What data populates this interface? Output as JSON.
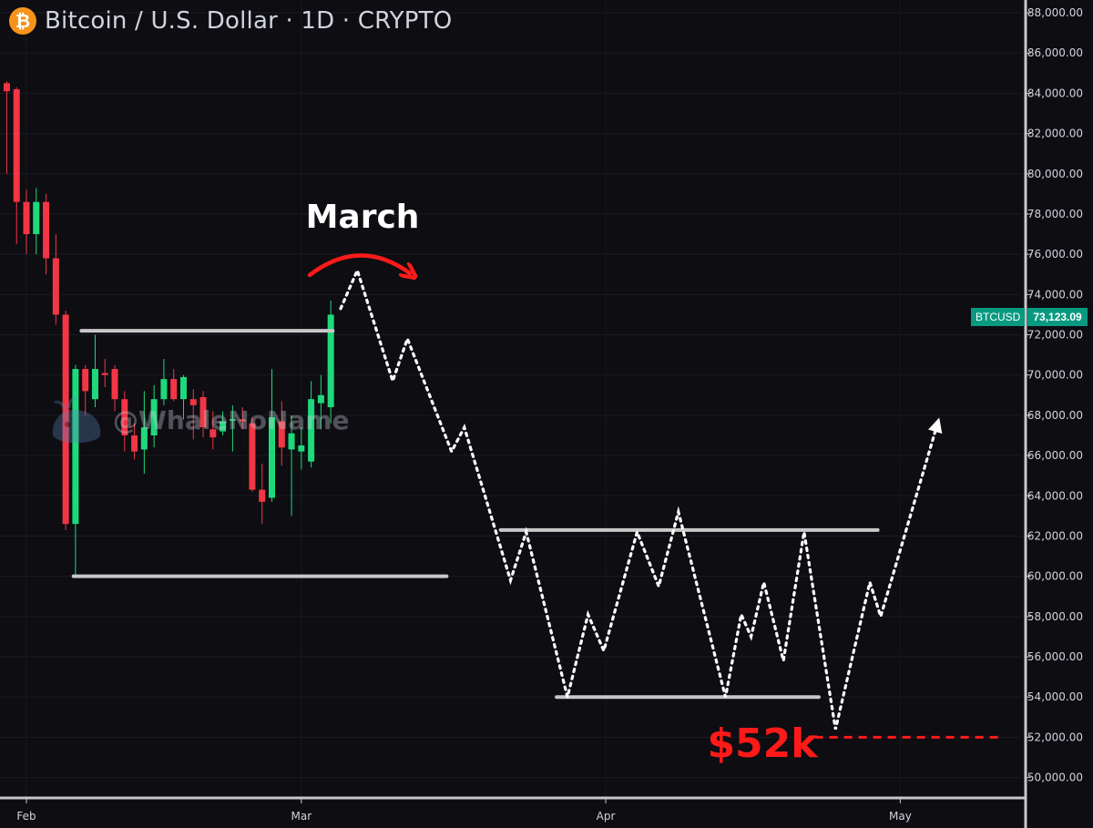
{
  "header": {
    "icon": "bitcoin-icon",
    "title": "Bitcoin / U.S. Dollar · 1D · CRYPTO"
  },
  "watermark": {
    "icon": "whale-icon",
    "text": "@WhaleNoName"
  },
  "price_tag": {
    "symbol": "BTCUSD",
    "value": "73,123.09",
    "color": "#089981"
  },
  "annotations": {
    "march_label": "March",
    "target_label": "$52k",
    "arrow_color": "#ff1a1a"
  },
  "chart_data": {
    "type": "candlestick",
    "title": "Bitcoin / U.S. Dollar · 1D · CRYPTO",
    "ylim": [
      49000,
      89000
    ],
    "y_ticks": [
      50000,
      52000,
      54000,
      56000,
      58000,
      60000,
      62000,
      64000,
      66000,
      68000,
      70000,
      72000,
      74000,
      76000,
      78000,
      80000,
      82000,
      84000,
      86000,
      88000
    ],
    "y_tick_labels": [
      "50,000.00",
      "52,000.00",
      "54,000.00",
      "56,000.00",
      "58,000.00",
      "60,000.00",
      "62,000.00",
      "64,000.00",
      "66,000.00",
      "68,000.00",
      "70,000.00",
      "72,000.00",
      "74,000.00",
      "76,000.00",
      "78,000.00",
      "80,000.00",
      "82,000.00",
      "84,000.00",
      "86,000.00",
      "88,000.00"
    ],
    "x_ticks": [
      {
        "label": "Feb",
        "day": 0
      },
      {
        "label": "Mar",
        "day": 28
      },
      {
        "label": "Apr",
        "day": 59
      },
      {
        "label": "May",
        "day": 89
      }
    ],
    "up_color": "#089981",
    "up_color_bright": "#1ed97b",
    "down_color": "#f23645",
    "candles": [
      {
        "day": -2,
        "o": 84500,
        "h": 84600,
        "l": 80000,
        "c": 84100
      },
      {
        "day": -1,
        "o": 84200,
        "h": 84300,
        "l": 76500,
        "c": 78600
      },
      {
        "day": 0,
        "o": 78600,
        "h": 79200,
        "l": 76000,
        "c": 77000
      },
      {
        "day": 1,
        "o": 77000,
        "h": 79300,
        "l": 76000,
        "c": 78600
      },
      {
        "day": 2,
        "o": 78600,
        "h": 79000,
        "l": 75000,
        "c": 75800
      },
      {
        "day": 3,
        "o": 75800,
        "h": 77000,
        "l": 72500,
        "c": 73000
      },
      {
        "day": 4,
        "o": 73000,
        "h": 73200,
        "l": 62300,
        "c": 62600
      },
      {
        "day": 5,
        "o": 62600,
        "h": 70500,
        "l": 60000,
        "c": 70300
      },
      {
        "day": 6,
        "o": 70300,
        "h": 70500,
        "l": 68000,
        "c": 69200
      },
      {
        "day": 7,
        "o": 68800,
        "h": 72000,
        "l": 68400,
        "c": 70300
      },
      {
        "day": 8,
        "o": 70100,
        "h": 70800,
        "l": 69400,
        "c": 70000
      },
      {
        "day": 9,
        "o": 70300,
        "h": 70500,
        "l": 68200,
        "c": 68800
      },
      {
        "day": 10,
        "o": 68800,
        "h": 69200,
        "l": 66200,
        "c": 67000
      },
      {
        "day": 11,
        "o": 67000,
        "h": 67600,
        "l": 65800,
        "c": 66200
      },
      {
        "day": 12,
        "o": 66300,
        "h": 69200,
        "l": 65100,
        "c": 67400
      },
      {
        "day": 13,
        "o": 67000,
        "h": 69500,
        "l": 66400,
        "c": 68800
      },
      {
        "day": 14,
        "o": 68800,
        "h": 70800,
        "l": 68500,
        "c": 69800
      },
      {
        "day": 15,
        "o": 69800,
        "h": 70300,
        "l": 68700,
        "c": 68800
      },
      {
        "day": 16,
        "o": 68800,
        "h": 70000,
        "l": 67800,
        "c": 69900
      },
      {
        "day": 17,
        "o": 68800,
        "h": 69300,
        "l": 66800,
        "c": 68500
      },
      {
        "day": 18,
        "o": 68900,
        "h": 69200,
        "l": 66900,
        "c": 67400
      },
      {
        "day": 19,
        "o": 67300,
        "h": 68200,
        "l": 66300,
        "c": 66900
      },
      {
        "day": 20,
        "o": 67200,
        "h": 68200,
        "l": 67000,
        "c": 67700
      },
      {
        "day": 21,
        "o": 67800,
        "h": 68500,
        "l": 66200,
        "c": 67800
      },
      {
        "day": 22,
        "o": 67800,
        "h": 68400,
        "l": 67300,
        "c": 67700
      },
      {
        "day": 23,
        "o": 67600,
        "h": 67900,
        "l": 64200,
        "c": 64300
      },
      {
        "day": 24,
        "o": 64300,
        "h": 65600,
        "l": 62600,
        "c": 63700
      },
      {
        "day": 25,
        "o": 63900,
        "h": 70300,
        "l": 63700,
        "c": 67900
      },
      {
        "day": 26,
        "o": 67700,
        "h": 68700,
        "l": 65500,
        "c": 66400
      },
      {
        "day": 27,
        "o": 66300,
        "h": 68000,
        "l": 63000,
        "c": 67100
      },
      {
        "day": 28,
        "o": 66200,
        "h": 67400,
        "l": 65300,
        "c": 66500
      },
      {
        "day": 29,
        "o": 65700,
        "h": 69700,
        "l": 65400,
        "c": 68800
      },
      {
        "day": 30,
        "o": 68600,
        "h": 70000,
        "l": 67300,
        "c": 69000
      },
      {
        "day": 31,
        "o": 68400,
        "h": 73700,
        "l": 67600,
        "c": 73000
      }
    ],
    "levels": [
      {
        "name": "range-high",
        "price": 72200,
        "from_day": 5.6,
        "to_day": 31.2
      },
      {
        "name": "range-low",
        "price": 60000,
        "from_day": 4.8,
        "to_day": 42.8
      },
      {
        "name": "projection-resistance",
        "price": 62300,
        "from_day": 48.3,
        "to_day": 86.7
      },
      {
        "name": "projection-support",
        "price": 54000,
        "from_day": 54,
        "to_day": 80.7
      }
    ],
    "target_level": {
      "price": 52000,
      "from_day": 80.3,
      "to_day": 99
    },
    "projection": [
      {
        "day": 32,
        "price": 73300
      },
      {
        "day": 33.7,
        "price": 75200
      },
      {
        "day": 37.3,
        "price": 69700
      },
      {
        "day": 38.8,
        "price": 71800
      },
      {
        "day": 43.3,
        "price": 66200
      },
      {
        "day": 44.6,
        "price": 67400
      },
      {
        "day": 49.3,
        "price": 59800
      },
      {
        "day": 50.9,
        "price": 62200
      },
      {
        "day": 55.1,
        "price": 54000
      },
      {
        "day": 57.2,
        "price": 58100
      },
      {
        "day": 58.8,
        "price": 56300
      },
      {
        "day": 62.2,
        "price": 62200
      },
      {
        "day": 64.4,
        "price": 59500
      },
      {
        "day": 66.4,
        "price": 63200
      },
      {
        "day": 71.2,
        "price": 54000
      },
      {
        "day": 72.8,
        "price": 58100
      },
      {
        "day": 73.8,
        "price": 57000
      },
      {
        "day": 75.1,
        "price": 59700
      },
      {
        "day": 77.1,
        "price": 55800
      },
      {
        "day": 79.2,
        "price": 62200
      },
      {
        "day": 82.4,
        "price": 52400
      },
      {
        "day": 85.9,
        "price": 59700
      },
      {
        "day": 87,
        "price": 58000
      },
      {
        "day": 92.8,
        "price": 67600
      }
    ]
  }
}
